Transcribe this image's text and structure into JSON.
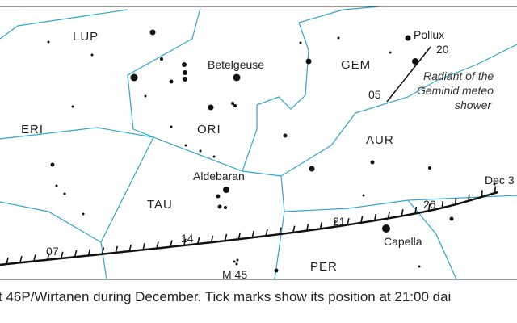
{
  "constellations": [
    "LUP",
    "ERI",
    "ORI",
    "TAU",
    "GEM",
    "AUR",
    "PER"
  ],
  "stars": [
    "Betelgeuse",
    "Aldebaran",
    "Pollux",
    "Capella",
    "M 45"
  ],
  "comet_dates": [
    "07",
    "14",
    "21",
    "26",
    "Dec 3"
  ],
  "radiant": {
    "dates": [
      "05",
      "20"
    ],
    "label": [
      "Radiant of the",
      "Geminid meteo",
      "shower"
    ]
  },
  "caption": "t 46P/Wirtanen during December. Tick marks show its position at 21:00 dai"
}
